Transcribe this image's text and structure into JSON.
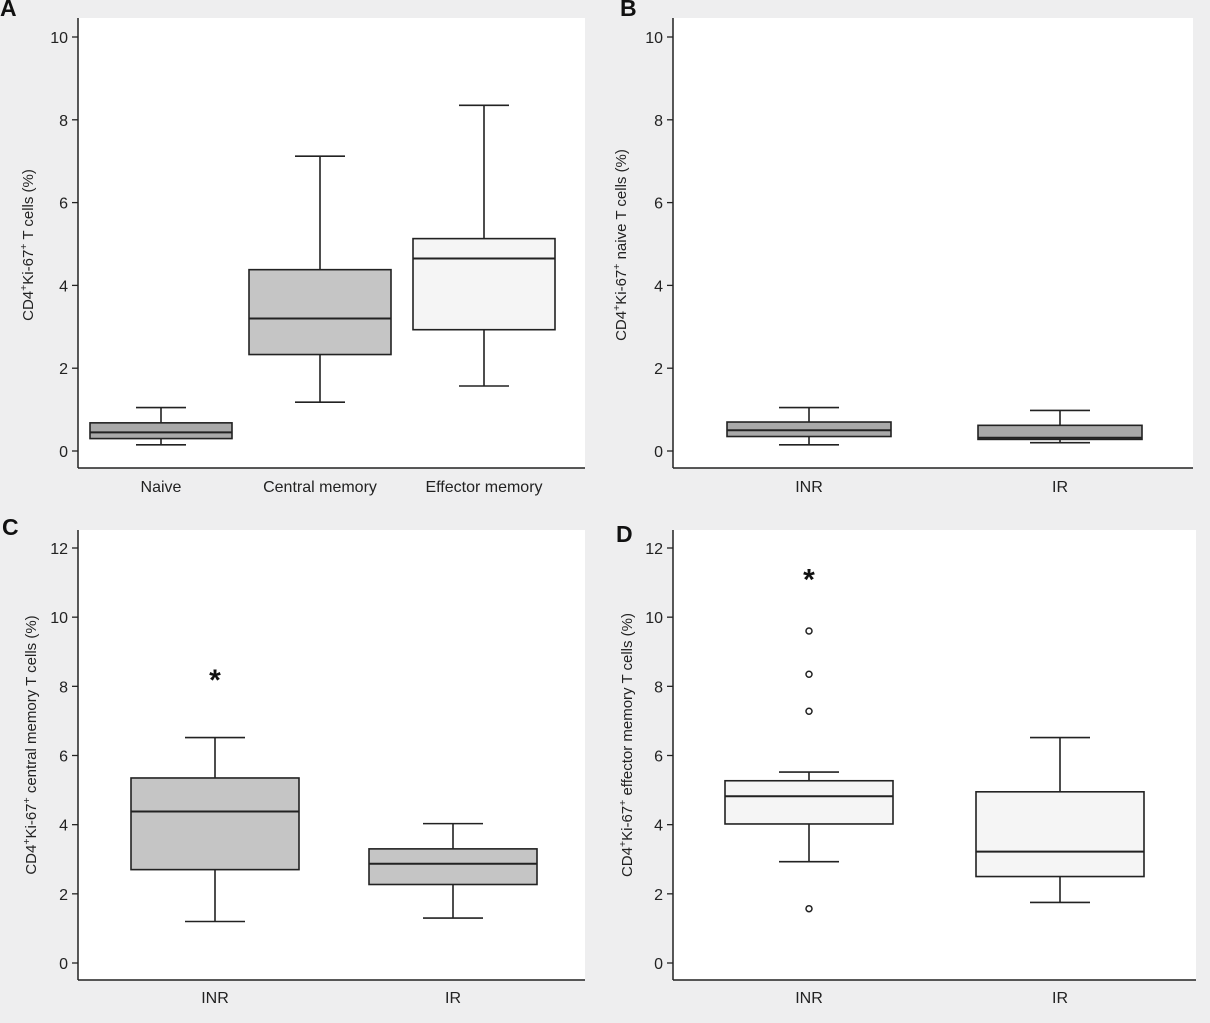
{
  "colors": {
    "background": "#eeeeef",
    "plot_area": "#ffffff",
    "box_dark": "#a9a9a9",
    "box_medium": "#c5c5c5",
    "box_light": "#f5f5f5",
    "stroke": "#222222"
  },
  "chart_data": [
    {
      "panel": "A",
      "type": "box",
      "ylabel": "CD4⁺Ki-67⁺ T cells (%)",
      "ylim": [
        0,
        10
      ],
      "yticks": [
        0,
        2,
        4,
        6,
        8,
        10
      ],
      "categories": [
        "Naive",
        "Central memory",
        "Effector memory"
      ],
      "boxes": [
        {
          "category": "Naive",
          "min": 0.15,
          "q1": 0.3,
          "median": 0.45,
          "q3": 0.68,
          "max": 1.05,
          "fill": "#a9a9a9",
          "outliers": []
        },
        {
          "category": "Central memory",
          "min": 1.18,
          "q1": 2.33,
          "median": 3.2,
          "q3": 4.38,
          "max": 7.12,
          "fill": "#c5c5c5",
          "outliers": []
        },
        {
          "category": "Effector memory",
          "min": 1.57,
          "q1": 2.93,
          "median": 4.65,
          "q3": 5.13,
          "max": 8.35,
          "fill": "#f5f5f5",
          "outliers": []
        }
      ],
      "annotations": []
    },
    {
      "panel": "B",
      "type": "box",
      "ylabel": "CD4⁺Ki-67⁺ naive T cells (%)",
      "ylim": [
        0,
        10
      ],
      "yticks": [
        0,
        2,
        4,
        6,
        8,
        10
      ],
      "categories": [
        "INR",
        "IR"
      ],
      "boxes": [
        {
          "category": "INR",
          "min": 0.15,
          "q1": 0.35,
          "median": 0.5,
          "q3": 0.7,
          "max": 1.05,
          "fill": "#a9a9a9",
          "outliers": []
        },
        {
          "category": "IR",
          "min": 0.2,
          "q1": 0.28,
          "median": 0.32,
          "q3": 0.62,
          "max": 0.98,
          "fill": "#a9a9a9",
          "outliers": []
        }
      ],
      "annotations": []
    },
    {
      "panel": "C",
      "type": "box",
      "ylabel": "CD4⁺Ki-67⁺ central memory T cells (%)",
      "ylim": [
        0,
        12
      ],
      "yticks": [
        0,
        2,
        4,
        6,
        8,
        10,
        12
      ],
      "categories": [
        "INR",
        "IR"
      ],
      "boxes": [
        {
          "category": "INR",
          "min": 1.2,
          "q1": 2.7,
          "median": 4.38,
          "q3": 5.35,
          "max": 6.52,
          "fill": "#c5c5c5",
          "outliers": []
        },
        {
          "category": "IR",
          "min": 1.3,
          "q1": 2.27,
          "median": 2.87,
          "q3": 3.3,
          "max": 4.03,
          "fill": "#c5c5c5",
          "outliers": []
        }
      ],
      "annotations": [
        {
          "text": "*",
          "category": "INR",
          "y": 8.3
        }
      ]
    },
    {
      "panel": "D",
      "type": "box",
      "ylabel": "CD4⁺Ki-67⁺ effector memory T cells (%)",
      "ylim": [
        0,
        12
      ],
      "yticks": [
        0,
        2,
        4,
        6,
        8,
        10,
        12
      ],
      "categories": [
        "INR",
        "IR"
      ],
      "boxes": [
        {
          "category": "INR",
          "min": 2.93,
          "q1": 4.02,
          "median": 4.82,
          "q3": 5.27,
          "max": 5.52,
          "fill": "#f5f5f5",
          "outliers": [
            1.57,
            7.28,
            8.35,
            9.6
          ]
        },
        {
          "category": "IR",
          "min": 1.75,
          "q1": 2.5,
          "median": 3.22,
          "q3": 4.95,
          "max": 6.52,
          "fill": "#f5f5f5",
          "outliers": []
        }
      ],
      "annotations": [
        {
          "text": "*",
          "category": "INR",
          "y": 11.2
        }
      ]
    }
  ]
}
